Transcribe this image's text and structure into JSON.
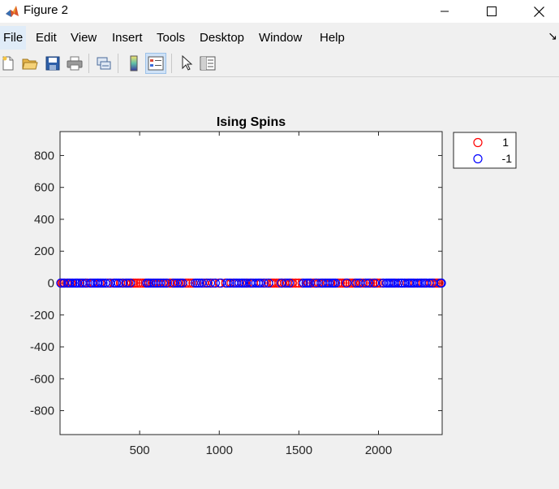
{
  "window": {
    "title": "Figure 2"
  },
  "menu": [
    {
      "label": "File",
      "active": true
    },
    {
      "label": "Edit"
    },
    {
      "label": "View"
    },
    {
      "label": "Insert"
    },
    {
      "label": "Tools"
    },
    {
      "label": "Desktop"
    },
    {
      "label": "Window"
    },
    {
      "label": "Help"
    }
  ],
  "toolbar": {
    "icons": [
      "new-figure-icon",
      "open-file-icon",
      "save-icon",
      "print-icon",
      "link-plot-icon",
      "colorbar-icon",
      "legend-icon",
      "edit-plot-icon",
      "property-inspector-icon"
    ]
  },
  "colors": {
    "spin_up": "#ff0000",
    "spin_down": "#0000ff",
    "accent": "#e0ecf8"
  },
  "chart_data": {
    "type": "scatter",
    "title": "Ising Spins",
    "xlabel": "",
    "ylabel": "",
    "xlim": [
      0,
      2400
    ],
    "ylim": [
      -950,
      950
    ],
    "xticks": [
      500,
      1000,
      1500,
      2000
    ],
    "yticks": [
      800,
      600,
      400,
      200,
      0,
      -200,
      -400,
      -600,
      -800
    ],
    "legend_position": "outside-top-right",
    "series": [
      {
        "name": "1",
        "color": "#ff0000",
        "y": 0,
        "x": [
          10,
          18,
          30,
          42,
          70,
          112,
          148,
          170,
          210,
          250,
          300,
          336,
          380,
          412,
          430,
          450,
          462,
          475,
          490,
          505,
          520,
          535,
          560,
          580,
          600,
          620,
          640,
          660,
          690,
          705,
          725,
          745,
          760,
          790,
          805,
          820,
          835,
          905,
          930,
          960,
          1000,
          1040,
          1075,
          1100,
          1160,
          1180,
          1215,
          1265,
          1295,
          1325,
          1335,
          1345,
          1360,
          1375,
          1395,
          1410,
          1430,
          1450,
          1460,
          1480,
          1500,
          1520,
          1560,
          1575,
          1590,
          1600,
          1625,
          1660,
          1680,
          1700,
          1745,
          1760,
          1775,
          1790,
          1805,
          1820,
          1835,
          1850,
          1870,
          1890,
          1905,
          1930,
          1950,
          1965,
          1985,
          1995,
          2010,
          2110,
          2180,
          2230,
          2280,
          2330,
          2350,
          2360,
          2370,
          2380
        ]
      },
      {
        "name": "-1",
        "color": "#0000ff",
        "y": 0,
        "x": [
          5,
          25,
          50,
          60,
          80,
          95,
          105,
          125,
          138,
          160,
          190,
          200,
          220,
          232,
          240,
          258,
          270,
          285,
          315,
          345,
          355,
          368,
          395,
          420,
          440,
          545,
          555,
          570,
          590,
          610,
          630,
          650,
          670,
          715,
          735,
          755,
          770,
          850,
          862,
          875,
          890,
          920,
          945,
          975,
          1010,
          1050,
          1065,
          1090,
          1110,
          1125,
          1140,
          1150,
          1170,
          1195,
          1205,
          1230,
          1245,
          1255,
          1280,
          1310,
          1390,
          1420,
          1440,
          1530,
          1545,
          1555,
          1570,
          1610,
          1640,
          1650,
          1670,
          1690,
          1710,
          1720,
          1730,
          1800,
          1860,
          1880,
          1920,
          1940,
          1975,
          2030,
          2050,
          2060,
          2070,
          2080,
          2090,
          2100,
          2125,
          2140,
          2150,
          2165,
          2190,
          2200,
          2210,
          2220,
          2245,
          2260,
          2270,
          2290,
          2300,
          2320,
          2340,
          2390,
          2395
        ]
      }
    ]
  }
}
